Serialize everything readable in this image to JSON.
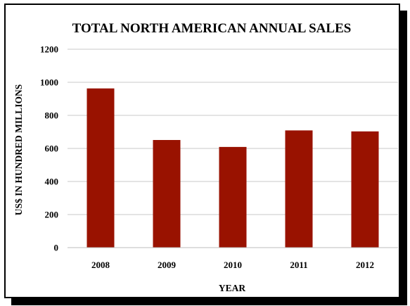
{
  "chart_data": {
    "type": "bar",
    "title": "TOTAL NORTH AMERICAN ANNUAL SALES",
    "xlabel": "YEAR",
    "ylabel": "US$ IN HUNDRED MILLIONS",
    "categories": [
      "2008",
      "2009",
      "2010",
      "2011",
      "2012"
    ],
    "values": [
      963,
      651,
      609,
      709,
      703
    ],
    "ylim": [
      0,
      1200
    ],
    "yticks": [
      0,
      200,
      400,
      600,
      800,
      1000,
      1200
    ],
    "grid": true,
    "legend": "none",
    "bar_color": "#991200",
    "grid_color": "#c8c8c8"
  }
}
